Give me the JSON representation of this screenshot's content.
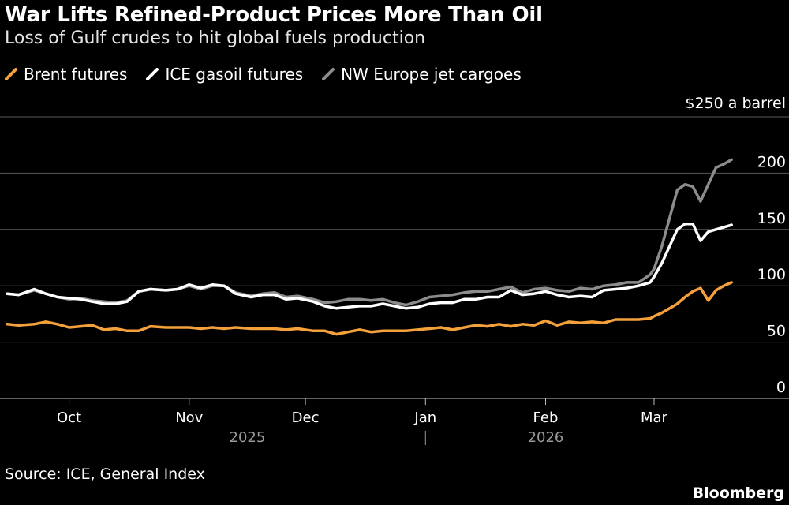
{
  "title": "War Lifts Refined-Product Prices More Than Oil",
  "subtitle": "Loss of Gulf crudes to hit global fuels production",
  "source": "Source: ICE, General Index",
  "brand": "Bloomberg",
  "chart_data": {
    "type": "line",
    "ylabel": "$250 a barrel",
    "ylim": [
      0,
      250
    ],
    "yticks": [
      0,
      50,
      100,
      150,
      200
    ],
    "grid": true,
    "legend_position": "top-left",
    "month_ticks": [
      {
        "label": "Oct",
        "day": 25
      },
      {
        "label": "Nov",
        "day": 56
      },
      {
        "label": "Dec",
        "day": 86
      },
      {
        "label": "Jan",
        "day": 117
      },
      {
        "label": "Feb",
        "day": 148
      },
      {
        "label": "Mar",
        "day": 176
      }
    ],
    "year_labels": [
      {
        "label": "2025",
        "day": 71
      },
      {
        "label": "2026",
        "day": 148
      }
    ],
    "year_divider_day": 117,
    "x_day_range": [
      9,
      198
    ],
    "series": [
      {
        "name": "Brent futures",
        "color": "#f4a13c",
        "days": [
          9,
          12,
          16,
          19,
          22,
          25,
          28,
          31,
          34,
          37,
          40,
          43,
          46,
          50,
          53,
          56,
          59,
          62,
          65,
          68,
          72,
          75,
          78,
          81,
          84,
          88,
          91,
          94,
          97,
          100,
          103,
          106,
          109,
          112,
          115,
          118,
          121,
          124,
          127,
          130,
          133,
          136,
          139,
          142,
          145,
          148,
          151,
          154,
          157,
          160,
          163,
          166,
          169,
          172,
          175,
          176,
          178,
          180,
          182,
          184,
          186,
          188,
          190,
          192,
          194,
          196
        ],
        "values": [
          66,
          65,
          66,
          68,
          66,
          63,
          64,
          65,
          61,
          62,
          60,
          60,
          64,
          63,
          63,
          63,
          62,
          63,
          62,
          63,
          62,
          62,
          62,
          61,
          62,
          60,
          60,
          57,
          59,
          61,
          59,
          60,
          60,
          60,
          61,
          62,
          63,
          61,
          63,
          65,
          64,
          66,
          64,
          66,
          65,
          69,
          65,
          68,
          67,
          68,
          67,
          70,
          70,
          70,
          71,
          73,
          76,
          80,
          84,
          90,
          95,
          98,
          87,
          96,
          100,
          103
        ]
      },
      {
        "name": "ICE gasoil futures",
        "color": "#ffffff",
        "days": [
          9,
          12,
          16,
          19,
          22,
          25,
          28,
          31,
          34,
          37,
          40,
          43,
          46,
          50,
          53,
          56,
          59,
          62,
          65,
          68,
          72,
          75,
          78,
          81,
          84,
          88,
          91,
          94,
          97,
          100,
          103,
          106,
          109,
          112,
          115,
          118,
          121,
          124,
          127,
          130,
          133,
          136,
          139,
          142,
          145,
          148,
          151,
          154,
          157,
          160,
          163,
          166,
          169,
          172,
          175,
          176,
          178,
          180,
          182,
          184,
          186,
          188,
          190,
          192,
          194,
          196
        ],
        "values": [
          93,
          92,
          97,
          93,
          90,
          89,
          88,
          86,
          84,
          84,
          86,
          95,
          97,
          96,
          97,
          101,
          98,
          101,
          100,
          93,
          90,
          92,
          92,
          88,
          89,
          86,
          82,
          80,
          81,
          82,
          82,
          84,
          82,
          80,
          81,
          84,
          85,
          85,
          88,
          88,
          90,
          90,
          96,
          92,
          93,
          95,
          92,
          90,
          91,
          90,
          96,
          97,
          98,
          100,
          103,
          108,
          120,
          135,
          150,
          155,
          155,
          140,
          148,
          150,
          152,
          154
        ]
      },
      {
        "name": "NW Europe jet cargoes",
        "color": "#8c8c8c",
        "days": [
          9,
          12,
          16,
          19,
          22,
          25,
          28,
          31,
          34,
          37,
          40,
          43,
          46,
          50,
          53,
          56,
          59,
          62,
          65,
          68,
          72,
          75,
          78,
          81,
          84,
          88,
          91,
          94,
          97,
          100,
          103,
          106,
          109,
          112,
          115,
          118,
          121,
          124,
          127,
          130,
          133,
          136,
          139,
          142,
          145,
          148,
          151,
          154,
          157,
          160,
          163,
          166,
          169,
          172,
          175,
          176,
          178,
          180,
          182,
          184,
          186,
          188,
          190,
          192,
          194,
          196
        ],
        "values": [
          93,
          92,
          96,
          93,
          90,
          88,
          89,
          87,
          86,
          85,
          87,
          95,
          97,
          96,
          97,
          100,
          97,
          100,
          100,
          94,
          91,
          93,
          94,
          90,
          91,
          88,
          85,
          86,
          88,
          88,
          87,
          88,
          85,
          83,
          86,
          90,
          91,
          92,
          94,
          95,
          95,
          97,
          99,
          94,
          97,
          98,
          96,
          95,
          98,
          97,
          100,
          101,
          103,
          103,
          110,
          115,
          135,
          160,
          185,
          190,
          188,
          175,
          190,
          205,
          208,
          212
        ]
      }
    ]
  }
}
